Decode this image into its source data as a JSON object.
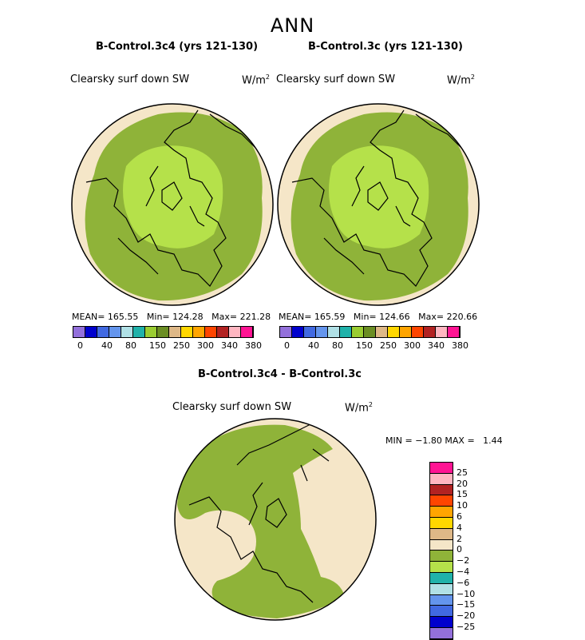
{
  "title": "ANN",
  "panels": [
    {
      "id": "left",
      "title": "B-Control.3c4 (yrs 121-130)",
      "variable": "Clearsky surf down SW",
      "units": "W/m",
      "units_sup": "2",
      "mean_text": "MEAN= 165.55",
      "min_text": "Min= 124.28",
      "max_text": "Max= 221.28"
    },
    {
      "id": "right",
      "title": "B-Control.3c (yrs 121-130)",
      "variable": "Clearsky surf down SW",
      "units": "W/m",
      "units_sup": "2",
      "mean_text": "MEAN= 165.59",
      "min_text": "Min= 124.66",
      "max_text": "Max= 220.66"
    }
  ],
  "diff_panel": {
    "title": "B-Control.3c4 - B-Control.3c",
    "variable": "Clearsky surf down SW",
    "units": "W/m",
    "units_sup": "2",
    "min_label": "MIN =",
    "min_value": "−1.80",
    "max_label": "MAX =",
    "max_value": "1.44"
  },
  "colorbar_top": {
    "colors": [
      "#9370db",
      "#0000cd",
      "#4169e1",
      "#6495ed",
      "#b0e0e6",
      "#20b2aa",
      "#9acd32",
      "#6b8e23",
      "#deb887",
      "#ffd700",
      "#ffa500",
      "#ff4500",
      "#b22222",
      "#ffb6c1",
      "#ff1493"
    ],
    "ticks": [
      "0",
      "40",
      "80",
      "150",
      "250",
      "300",
      "340",
      "380"
    ]
  },
  "colorbar_diff": {
    "colors": [
      "#ff1493",
      "#ffb6c1",
      "#b22222",
      "#ff4500",
      "#ffa500",
      "#ffd700",
      "#deb887",
      "#f5e6c8",
      "#8fb339",
      "#b5e14a",
      "#20b2aa",
      "#b0e0e6",
      "#6495ed",
      "#4169e1",
      "#0000cd",
      "#9370db"
    ],
    "ticks": [
      "25",
      "20",
      "15",
      "10",
      "6",
      "4",
      "2",
      "0",
      "−2",
      "−4",
      "−6",
      "−10",
      "−15",
      "−20",
      "−25"
    ]
  },
  "map_colors": {
    "outer": "#f5e6c8",
    "mid": "#8fb339",
    "inner": "#b5e14a",
    "coast": "#000000"
  }
}
